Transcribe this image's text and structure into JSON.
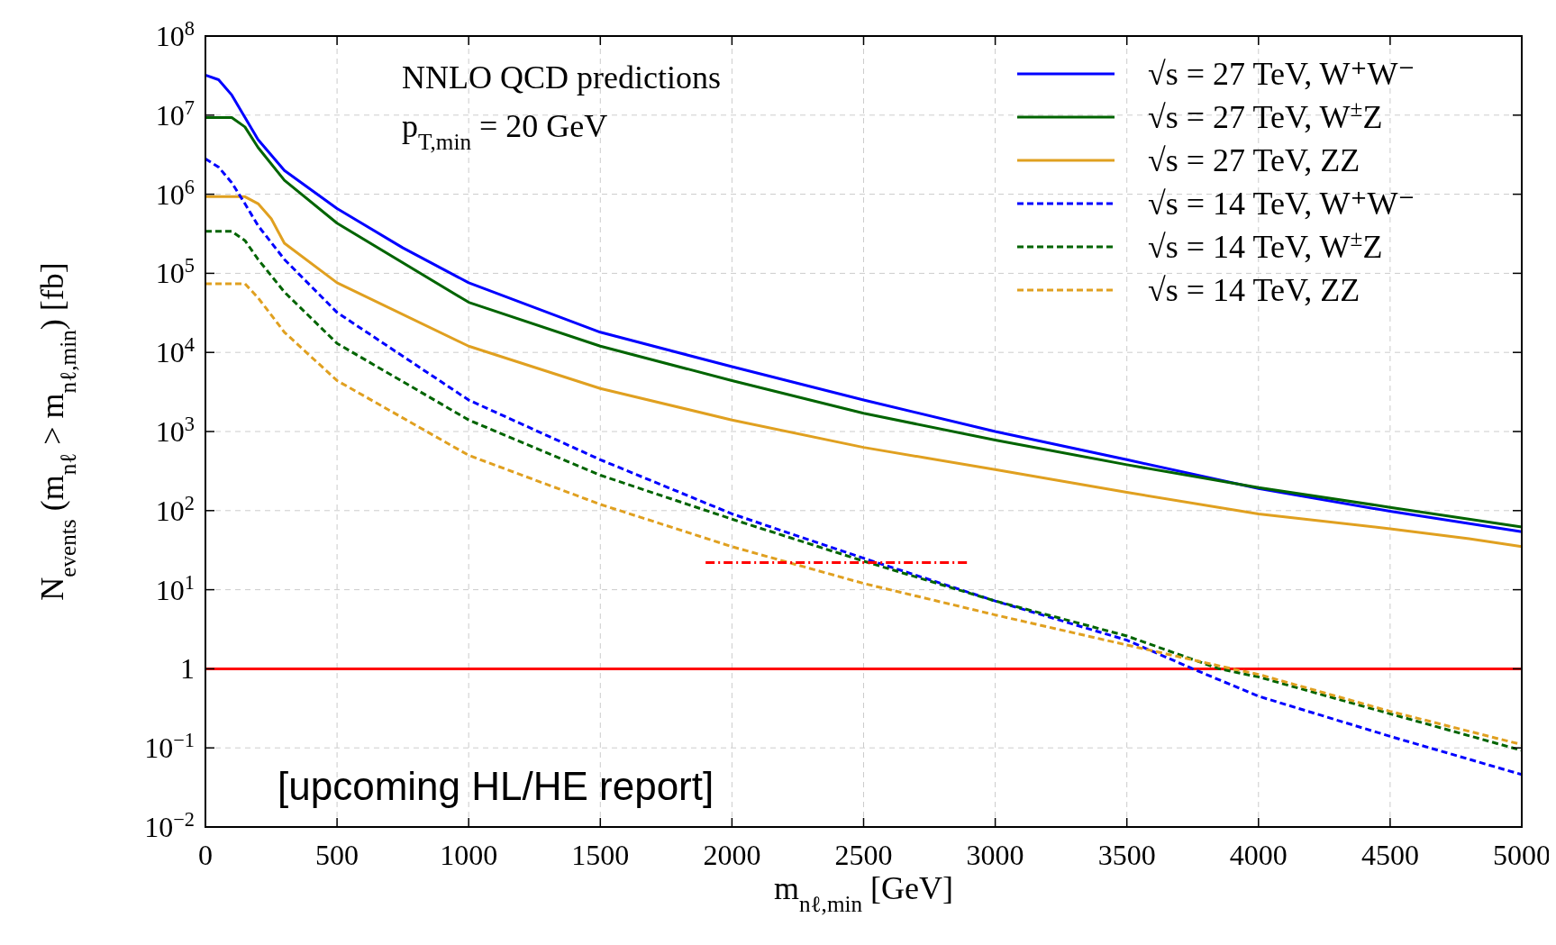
{
  "chart_data": {
    "type": "line",
    "xlabel": "m$_{nℓ,min}$ [GeV]",
    "ylabel": "N$_{events}$ (m$_{nℓ}$ > m$_{nℓ,min}$) [fb]",
    "log": "y",
    "grid": true,
    "legend": "top right",
    "xlim": [
      0,
      5000
    ],
    "xticks": [
      0,
      500,
      1000,
      1500,
      2000,
      2500,
      3000,
      3500,
      4000,
      4500,
      5000
    ],
    "ylim": [
      0.01,
      100000000
    ],
    "yticks": [
      {
        "value": 0.01,
        "label": "10$^{−2}$"
      },
      {
        "value": 0.1,
        "label": "10$^{−1}$"
      },
      1,
      {
        "value": 10,
        "label": "10$^{1}$"
      },
      {
        "value": 100,
        "label": "10$^{2}$"
      },
      {
        "value": 1000,
        "label": "10$^{3}$"
      },
      {
        "value": 10000,
        "label": "10$^{4}$"
      },
      {
        "value": 100000,
        "label": "10$^{5}$"
      },
      {
        "value": 1000000,
        "label": "10$^{6}$"
      },
      {
        "value": 10000000,
        "label": "10$^{7}$"
      },
      {
        "value": 100000000,
        "label": "10$^{8}$"
      }
    ],
    "annotations": [
      "NNLO QCD predictions",
      "p$_{T,min}$ = 20 GeV",
      "[upcoming HL/HE report]"
    ],
    "ref_lines": [
      {
        "axis": "y",
        "value": 1,
        "color": "#ff0000",
        "line_style": "solid"
      }
    ],
    "series": [
      {
        "name": "√s = 27 TeV, W⁺W⁻",
        "color": "#0000ff",
        "line_style": "solid",
        "x": [
          0,
          50,
          100,
          200,
          300,
          500,
          750,
          1000,
          1500,
          2000,
          2500,
          3000,
          3500,
          4000,
          4500,
          5000
        ],
        "values": [
          32000000,
          28000000,
          18000000,
          4900000,
          2000000,
          660000,
          210000,
          76000,
          18000,
          6600,
          2500,
          1000,
          440,
          190,
          98,
          54
        ]
      },
      {
        "name": "√s = 27 TeV, W$^{±}$Z",
        "color": "#006400",
        "line_style": "solid",
        "x": [
          0,
          100,
          150,
          200,
          300,
          500,
          1000,
          1500,
          2000,
          2500,
          3000,
          3500,
          4000,
          4500,
          5000
        ],
        "values": [
          9300000,
          9300000,
          7100000,
          3900000,
          1500000,
          430000,
          43000,
          12000,
          4400,
          1700,
          780,
          380,
          195,
          110,
          62
        ]
      },
      {
        "name": "√s = 27 TeV, ZZ",
        "color": "#e0a020",
        "line_style": "solid",
        "x": [
          0,
          150,
          200,
          250,
          300,
          500,
          1000,
          1500,
          2000,
          2500,
          3000,
          3500,
          4000,
          4500,
          4800,
          5000
        ],
        "values": [
          930000,
          930000,
          760000,
          490000,
          240000,
          76000,
          12000,
          3500,
          1400,
          630,
          330,
          170,
          91,
          59,
          44,
          35
        ]
      },
      {
        "name": "√s = 14 TeV, W⁺W⁻",
        "color": "#0000ff",
        "line_style": "dashed",
        "x": [
          0,
          50,
          100,
          150,
          200,
          300,
          500,
          1000,
          1500,
          2000,
          2500,
          3000,
          3500,
          3750,
          4000,
          4500,
          5000
        ],
        "values": [
          2800000,
          2200000,
          1400000,
          760000,
          400000,
          150000,
          32000,
          2500,
          440,
          91,
          25,
          7.2,
          2.3,
          1,
          0.45,
          0.14,
          0.046
        ]
      },
      {
        "name": "√s = 14 TeV, W$^{±}$Z",
        "color": "#006400",
        "line_style": "dashed",
        "x": [
          0,
          100,
          150,
          200,
          300,
          500,
          1000,
          1500,
          2000,
          2500,
          3000,
          3500,
          3850,
          4000,
          4500,
          5000
        ],
        "values": [
          340000,
          340000,
          260000,
          150000,
          58000,
          13000,
          1400,
          280,
          78,
          23,
          7.2,
          2.6,
          1,
          0.79,
          0.27,
          0.093
        ]
      },
      {
        "name": "√s = 14 TeV, ZZ",
        "color": "#e0a020",
        "line_style": "dashed",
        "x": [
          0,
          150,
          200,
          300,
          500,
          1000,
          1500,
          2000,
          2500,
          3000,
          3500,
          3900,
          4000,
          4500,
          5000
        ],
        "values": [
          74000,
          74000,
          49000,
          18000,
          4400,
          500,
          120,
          35,
          12,
          4.8,
          2.0,
          1,
          0.85,
          0.29,
          0.11
        ]
      },
      {
        "color": "#ff0000",
        "line_style": "dashdot",
        "x": [
          1900,
          2900
        ],
        "values": [
          22,
          22
        ]
      }
    ]
  }
}
